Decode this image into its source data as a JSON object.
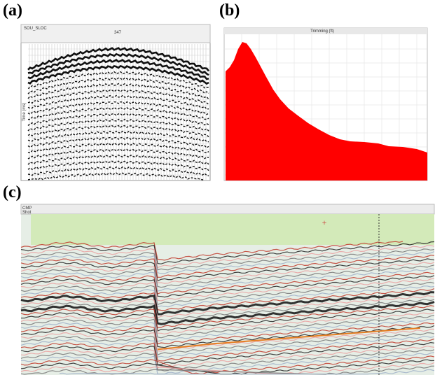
{
  "panels": [
    {
      "label": "(a)",
      "header": "SOU_SLOC",
      "marker": "347",
      "axis_title": "Time (ms)"
    },
    {
      "label": "(b)",
      "axis_title": "Trimming (ft)"
    },
    {
      "label": "(c)",
      "row_labels": [
        "CMP",
        "Shot"
      ]
    }
  ]
}
